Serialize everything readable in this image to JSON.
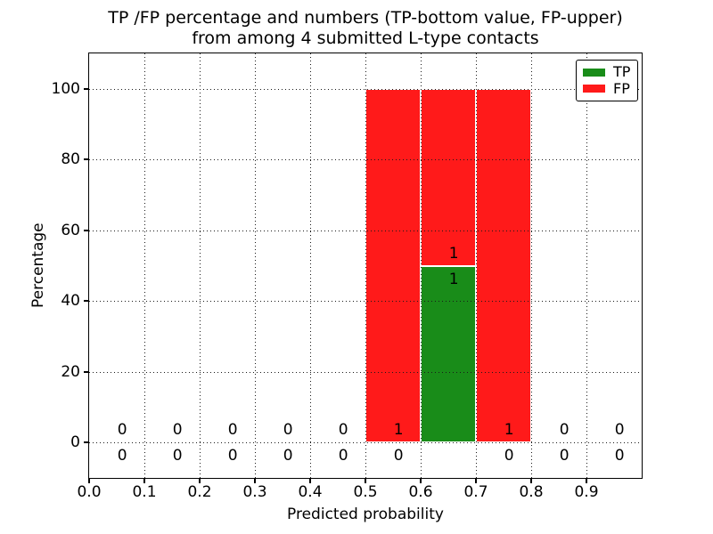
{
  "chart_data": {
    "type": "bar",
    "title_line1": "TP /FP percentage and numbers (TP-bottom value, FP-upper)",
    "title_line2": "from among 4 submitted L-type contacts",
    "xlabel": "Predicted probability",
    "ylabel": "Percentage",
    "xlim": [
      0.0,
      1.0
    ],
    "ylim": [
      -10,
      110
    ],
    "grid": true,
    "xticks": [
      {
        "v": 0.0,
        "label": "0.0"
      },
      {
        "v": 0.1,
        "label": "0.1"
      },
      {
        "v": 0.2,
        "label": "0.2"
      },
      {
        "v": 0.3,
        "label": "0.3"
      },
      {
        "v": 0.4,
        "label": "0.4"
      },
      {
        "v": 0.5,
        "label": "0.5"
      },
      {
        "v": 0.6,
        "label": "0.6"
      },
      {
        "v": 0.7,
        "label": "0.7"
      },
      {
        "v": 0.8,
        "label": "0.8"
      },
      {
        "v": 0.9,
        "label": "0.9"
      }
    ],
    "yticks": [
      {
        "v": 0,
        "label": "0"
      },
      {
        "v": 20,
        "label": "20"
      },
      {
        "v": 40,
        "label": "40"
      },
      {
        "v": 60,
        "label": "60"
      },
      {
        "v": 80,
        "label": "80"
      },
      {
        "v": 100,
        "label": "100"
      }
    ],
    "colors": {
      "tp": "#198c19",
      "fp": "#ff1a1a"
    },
    "legend": {
      "position": "upper-right",
      "items": [
        {
          "label": "TP",
          "color": "#198c19"
        },
        {
          "label": "FP",
          "color": "#ff1a1a"
        }
      ]
    },
    "bins": [
      {
        "x0": 0.0,
        "x1": 0.1,
        "tp_pct": 0,
        "fp_pct": 0,
        "tp_count": "0",
        "fp_count": "0"
      },
      {
        "x0": 0.1,
        "x1": 0.2,
        "tp_pct": 0,
        "fp_pct": 0,
        "tp_count": "0",
        "fp_count": "0"
      },
      {
        "x0": 0.2,
        "x1": 0.3,
        "tp_pct": 0,
        "fp_pct": 0,
        "tp_count": "0",
        "fp_count": "0"
      },
      {
        "x0": 0.3,
        "x1": 0.4,
        "tp_pct": 0,
        "fp_pct": 0,
        "tp_count": "0",
        "fp_count": "0"
      },
      {
        "x0": 0.4,
        "x1": 0.5,
        "tp_pct": 0,
        "fp_pct": 0,
        "tp_count": "0",
        "fp_count": "0"
      },
      {
        "x0": 0.5,
        "x1": 0.6,
        "tp_pct": 0,
        "fp_pct": 100,
        "tp_count": "0",
        "fp_count": "1"
      },
      {
        "x0": 0.6,
        "x1": 0.7,
        "tp_pct": 50,
        "fp_pct": 50,
        "tp_count": "1",
        "fp_count": "1"
      },
      {
        "x0": 0.7,
        "x1": 0.8,
        "tp_pct": 0,
        "fp_pct": 100,
        "tp_count": "0",
        "fp_count": "1"
      },
      {
        "x0": 0.8,
        "x1": 0.9,
        "tp_pct": 0,
        "fp_pct": 0,
        "tp_count": "0",
        "fp_count": "0"
      },
      {
        "x0": 0.9,
        "x1": 1.0,
        "tp_pct": 0,
        "fp_pct": 0,
        "tp_count": "0",
        "fp_count": "0"
      }
    ]
  }
}
